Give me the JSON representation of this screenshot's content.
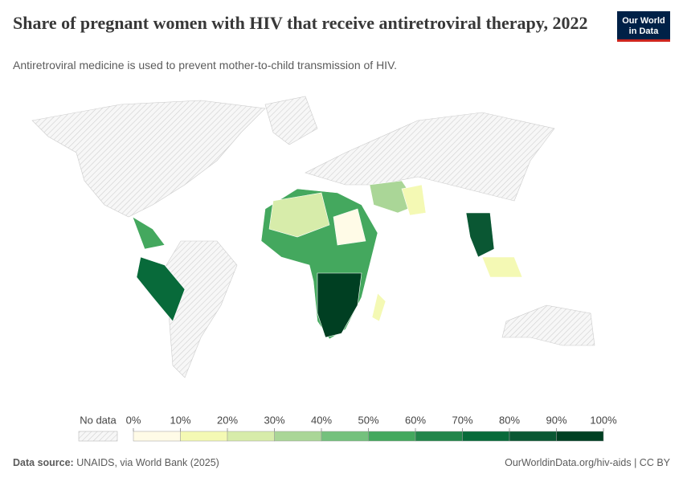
{
  "chart_data": {
    "type": "choropleth",
    "title": "Share of pregnant women with HIV that receive antiretroviral therapy, 2022",
    "subtitle": "Antiretroviral medicine is used to prevent mother-to-child transmission of HIV.",
    "logo": [
      "Our World",
      "in Data"
    ],
    "no_data_label": "No data",
    "legend_ticks": [
      {
        "value": 0,
        "label": "0%"
      },
      {
        "value": 10,
        "label": "10%"
      },
      {
        "value": 20,
        "label": "20%"
      },
      {
        "value": 30,
        "label": "30%"
      },
      {
        "value": 40,
        "label": "40%"
      },
      {
        "value": 50,
        "label": "50%"
      },
      {
        "value": 60,
        "label": "60%"
      },
      {
        "value": 70,
        "label": "70%"
      },
      {
        "value": 80,
        "label": "80%"
      },
      {
        "value": 90,
        "label": "90%"
      },
      {
        "value": 100,
        "label": "100%"
      }
    ],
    "colors": [
      "#fffbe7",
      "#f4f9b4",
      "#d7ecaa",
      "#aad697",
      "#74c17d",
      "#44a85e",
      "#22854a",
      "#086a3a",
      "#0a5733",
      "#003f22"
    ],
    "source_label": "Data source:",
    "source": "UNAIDS, via World Bank (2025)",
    "url": "OurWorldinData.org/hiv-aids | CC BY"
  }
}
